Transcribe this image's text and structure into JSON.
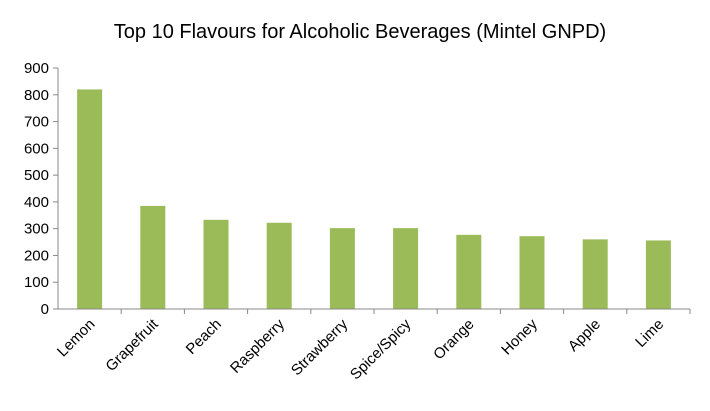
{
  "chart_data": {
    "type": "bar",
    "title": "Top 10 Flavours for Alcoholic Beverages (Mintel GNPD)",
    "xlabel": "",
    "ylabel": "",
    "categories": [
      "Lemon",
      "Grapefruit",
      "Peach",
      "Raspberry",
      "Strawberry",
      "Spice/Spicy",
      "Orange",
      "Honey",
      "Apple",
      "Lime"
    ],
    "values": [
      820,
      385,
      333,
      322,
      302,
      302,
      277,
      272,
      260,
      256
    ],
    "ylim": [
      0,
      900
    ],
    "yticks": [
      "0",
      "100",
      "200",
      "300",
      "400",
      "500",
      "600",
      "700",
      "800",
      "900"
    ],
    "grid": false,
    "legend": "none",
    "bar_color": "#9BBB59"
  }
}
